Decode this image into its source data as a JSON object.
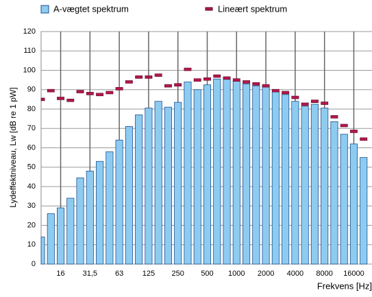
{
  "chart_data": {
    "type": "bar",
    "x_label": "Frekvens [Hz]",
    "y_label": "Lydeffektniveau, Lw [dB re 1 pW]",
    "categories": [
      null,
      null,
      "16",
      null,
      null,
      "31,5",
      null,
      null,
      "63",
      null,
      null,
      "125",
      null,
      null,
      "250",
      null,
      null,
      "500",
      null,
      null,
      "1000",
      null,
      null,
      "2000",
      null,
      null,
      "4000",
      null,
      null,
      "8000",
      null,
      null,
      "16000",
      null
    ],
    "series": [
      {
        "name": "A-vægtet spektrum",
        "type": "bar",
        "color": "#8ecbf0",
        "values": [
          14,
          26,
          29,
          34,
          44.5,
          48,
          53,
          58,
          64,
          71,
          77,
          80.5,
          84,
          81,
          83.5,
          94,
          90,
          92.5,
          95.5,
          95.5,
          94.5,
          93,
          92,
          91.5,
          89,
          87.5,
          84,
          81.5,
          82.5,
          80.5,
          73.5,
          67,
          62,
          55
        ]
      },
      {
        "name": "Lineært spektrum",
        "type": "marker",
        "color": "#b3174d",
        "values": [
          85,
          89.5,
          85.5,
          84.5,
          89,
          88,
          87.5,
          88.5,
          90.5,
          94,
          96.5,
          96.5,
          97.5,
          92,
          92.5,
          100.5,
          95,
          95.5,
          97,
          96,
          95,
          94,
          93,
          92,
          89.5,
          88.5,
          86,
          82.5,
          84,
          83,
          76,
          71.5,
          68.5,
          64.5
        ]
      }
    ],
    "ylim": [
      0,
      120
    ],
    "yticks": [
      0,
      10,
      20,
      30,
      40,
      50,
      60,
      70,
      80,
      90,
      100,
      110,
      120
    ],
    "grid": true
  }
}
